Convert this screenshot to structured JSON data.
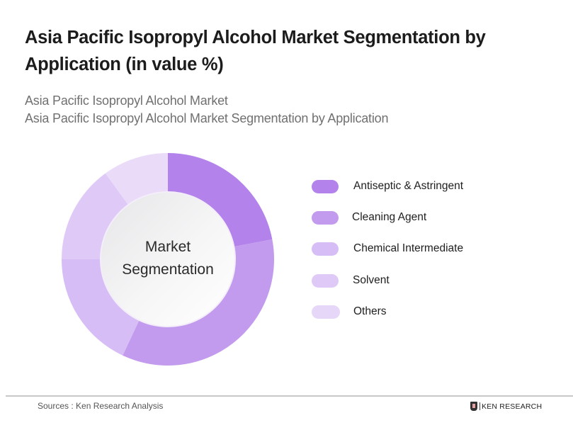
{
  "header": {
    "title": "Asia Pacific Isopropyl Alcohol Market  Segmentation by Application (in value %)",
    "subtitle_line1": "Asia Pacific Isopropyl Alcohol Market",
    "subtitle_line2": "Asia Pacific Isopropyl Alcohol Market Segmentation by Application"
  },
  "chart": {
    "center_label_line1": "Market",
    "center_label_line2": "Segmentation"
  },
  "legend": [
    {
      "label": "Antiseptic & Astringent",
      "color": "#b382ea"
    },
    {
      "label": "Cleaning Agent",
      "color": "#c39bee"
    },
    {
      "label": "Chemical Intermediate",
      "color": "#d7bdf5"
    },
    {
      "label": "Solvent",
      "color": "#dfcaf7"
    },
    {
      "label": "Others",
      "color": "#e6d7f8"
    }
  ],
  "footer": {
    "source": "Sources : Ken Research Analysis",
    "logo_text": "KEN RESEARCH"
  },
  "chart_data": {
    "type": "pie",
    "subtype": "donut",
    "title": "Asia Pacific Isopropyl Alcohol Market  Segmentation by Application (in value %)",
    "subtitle": "Asia Pacific Isopropyl Alcohol Market Segmentation by Application",
    "center_text": "Market Segmentation",
    "categories": [
      "Antiseptic & Astringent",
      "Cleaning Agent",
      "Chemical Intermediate",
      "Solvent",
      "Others"
    ],
    "values": [
      22,
      35,
      18,
      15,
      10
    ],
    "colors": [
      "#b382ea",
      "#c39bee",
      "#d7bdf5",
      "#dfcaf7",
      "#eadcf9"
    ],
    "unit": "%",
    "start_angle": "12 o'clock, clockwise",
    "data_labels_shown": false,
    "legend_position": "right"
  }
}
